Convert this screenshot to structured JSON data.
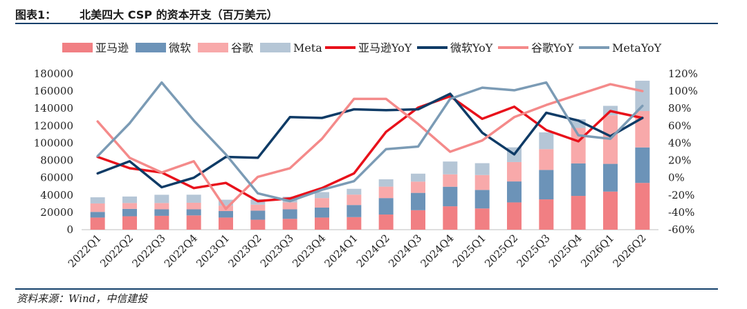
{
  "header": {
    "figure_label": "图表1：",
    "title": "北美四大 CSP 的资本开支（百万美元）"
  },
  "source": "资料来源：Wind，中信建投",
  "chart_data": {
    "type": "bar",
    "stacked": true,
    "categories": [
      "2022Q1",
      "2022Q2",
      "2022Q3",
      "2022Q4",
      "2023Q1",
      "2023Q2",
      "2023Q3",
      "2023Q4",
      "2024Q1",
      "2024Q2",
      "2024Q3",
      "2024Q4",
      "2025Q1",
      "2025Q2",
      "2025Q3",
      "2025Q4",
      "2026Q1",
      "2026Q2"
    ],
    "left_axis": {
      "ylim": [
        0,
        180000
      ],
      "ticks": [
        "0",
        "20000",
        "40000",
        "60000",
        "80000",
        "100000",
        "120000",
        "140000",
        "160000",
        "180000"
      ]
    },
    "right_axis": {
      "ylim": [
        -0.6,
        1.2
      ],
      "ticks": [
        "-60%",
        "-40%",
        "-20%",
        "0%",
        "20%",
        "40%",
        "60%",
        "80%",
        "100%",
        "120%"
      ]
    },
    "bar_series": [
      {
        "name": "亚马逊",
        "color": "#f17f83",
        "values": [
          14000,
          15500,
          16000,
          16500,
          14000,
          11500,
          12500,
          14000,
          14500,
          17500,
          22500,
          27000,
          24500,
          31500,
          35000,
          39000,
          44000,
          54000
        ]
      },
      {
        "name": "微软",
        "color": "#6c93b8",
        "values": [
          6500,
          8500,
          7500,
          7000,
          7500,
          10500,
          11000,
          11500,
          14000,
          19000,
          20000,
          22600,
          21400,
          24200,
          34000,
          37500,
          32000,
          41000
        ]
      },
      {
        "name": "谷歌",
        "color": "#f8a9aa",
        "values": [
          9800,
          6800,
          7300,
          7600,
          6300,
          6900,
          8000,
          11000,
          12000,
          13200,
          13000,
          14300,
          17200,
          22400,
          24000,
          41000,
          56000,
          42000
        ]
      },
      {
        "name": "Meta",
        "color": "#b5c6d6",
        "values": [
          7100,
          7500,
          9500,
          9300,
          6800,
          6300,
          6500,
          6900,
          6700,
          8500,
          9200,
          14800,
          13700,
          17000,
          19400,
          10000,
          11000,
          35000
        ]
      }
    ],
    "line_series": [
      {
        "name": "亚马逊YoY",
        "color": "#e8111b",
        "values": [
          0.24,
          0.11,
          0.06,
          -0.12,
          -0.06,
          -0.27,
          -0.24,
          -0.12,
          0.05,
          0.53,
          0.81,
          0.94,
          0.68,
          0.82,
          0.55,
          0.42,
          0.77,
          0.69
        ]
      },
      {
        "name": "微软YoY",
        "color": "#0f3b66",
        "values": [
          0.05,
          0.19,
          -0.11,
          0.0,
          0.24,
          0.23,
          0.7,
          0.69,
          0.79,
          0.78,
          0.79,
          0.97,
          0.52,
          0.27,
          0.75,
          0.66,
          0.48,
          0.69
        ]
      },
      {
        "name": "谷歌YoY",
        "color": "#f48a8a",
        "values": [
          0.65,
          0.23,
          0.06,
          0.19,
          -0.36,
          0.01,
          0.11,
          0.45,
          0.91,
          0.91,
          0.62,
          0.3,
          0.43,
          0.7,
          0.84,
          0.96,
          1.08,
          1.0
        ]
      },
      {
        "name": "MetaYoY",
        "color": "#7b9bb5",
        "values": [
          0.25,
          0.63,
          1.1,
          0.66,
          0.27,
          -0.18,
          -0.27,
          -0.14,
          -0.04,
          0.33,
          0.36,
          0.91,
          1.04,
          1.01,
          1.1,
          0.49,
          0.45,
          0.83
        ]
      }
    ],
    "legend_position": "top"
  }
}
